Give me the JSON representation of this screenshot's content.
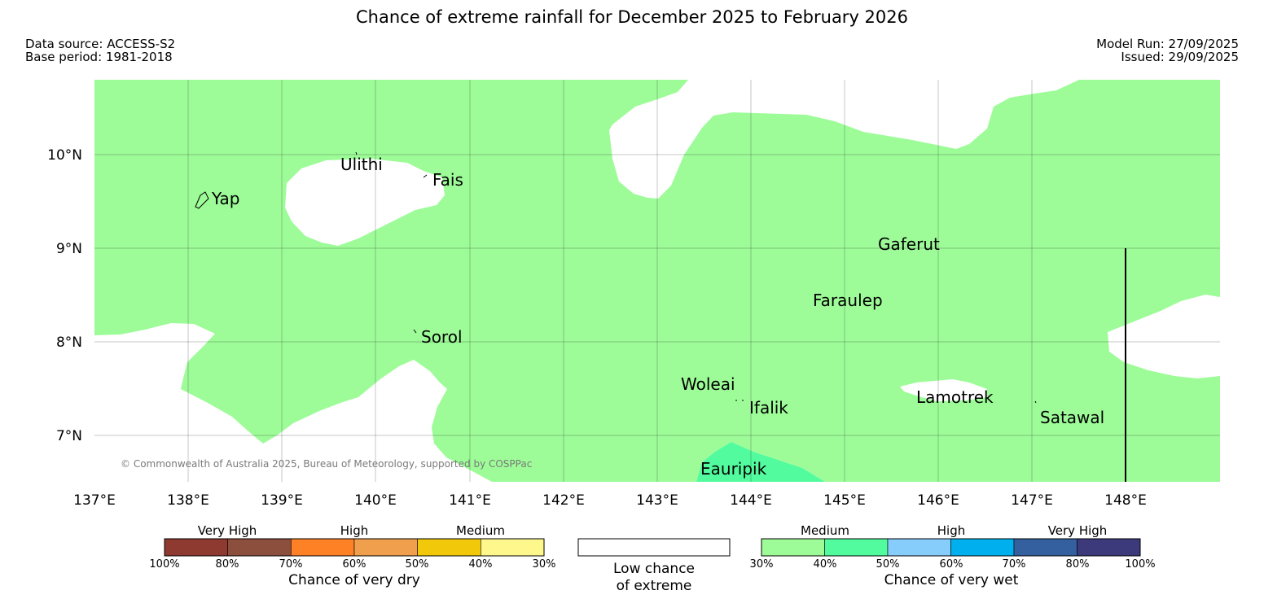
{
  "title": "Chance of extreme rainfall for December 2025 to February 2026",
  "meta": {
    "data_source": "Data source: ACCESS-S2",
    "base_period": "Base period: 1981-2018",
    "model_run": "Model Run: 27/09/2025",
    "issued": "Issued: 29/09/2025"
  },
  "map": {
    "lon_ticks": [
      "137°E",
      "138°E",
      "139°E",
      "140°E",
      "141°E",
      "142°E",
      "143°E",
      "144°E",
      "145°E",
      "146°E",
      "147°E",
      "148°E"
    ],
    "lat_ticks": [
      "10°N",
      "9°N",
      "8°N",
      "7°N"
    ],
    "places": {
      "yap": "Yap",
      "ulithi": "Ulithi",
      "fais": "Fais",
      "gaferut": "Gaferut",
      "faraulep": "Faraulep",
      "sorol": "Sorol",
      "woleai": "Woleai",
      "ifalik": "Ifalik",
      "lamotrek": "Lamotrek",
      "satawal": "Satawal",
      "eauripik": "Eauripik"
    },
    "copyright": "© Commonwealth of Australia 2025, Bureau of Meteorology, supported by COSPPac",
    "colors": {
      "medium_wet": "#9dfc98",
      "medium_high_wet": "#52fc9e"
    }
  },
  "legend": {
    "dry": {
      "categories": [
        "Very High",
        "High",
        "Medium"
      ],
      "ticks": [
        "100%",
        "80%",
        "70%",
        "60%",
        "50%",
        "40%",
        "30%"
      ],
      "colors": [
        "#8e3a30",
        "#8d4f3d",
        "#fe8126",
        "#f0a04c",
        "#f1c80a",
        "#fdf78c"
      ],
      "caption": "Chance of very dry"
    },
    "neutral": {
      "line1": "Low chance",
      "line2": "of extreme"
    },
    "wet": {
      "categories": [
        "Medium",
        "High",
        "Very High"
      ],
      "ticks": [
        "30%",
        "40%",
        "50%",
        "60%",
        "70%",
        "80%",
        "100%"
      ],
      "colors": [
        "#9dfc98",
        "#52fc9e",
        "#87cdfb",
        "#00b0ee",
        "#3560a0",
        "#3c3a7b"
      ],
      "caption": "Chance of very wet"
    }
  }
}
